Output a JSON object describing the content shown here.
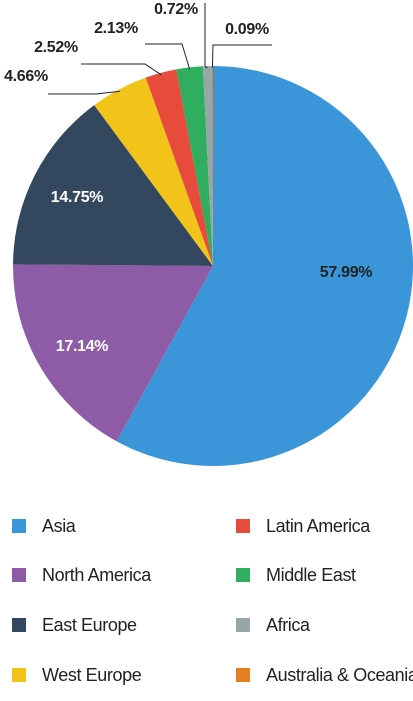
{
  "chart_data": {
    "type": "pie",
    "slices": [
      {
        "name": "Asia",
        "value": 57.99,
        "label": "57.99%",
        "color": "#3a96d8"
      },
      {
        "name": "North America",
        "value": 17.14,
        "label": "17.14%",
        "color": "#8e5ba6"
      },
      {
        "name": "East Europe",
        "value": 14.75,
        "label": "14.75%",
        "color": "#33475f"
      },
      {
        "name": "West Europe",
        "value": 4.66,
        "label": "4.66%",
        "color": "#f2c319"
      },
      {
        "name": "Latin America",
        "value": 2.52,
        "label": "2.52%",
        "color": "#e74b3c"
      },
      {
        "name": "Middle East",
        "value": 2.13,
        "label": "2.13%",
        "color": "#2fae60"
      },
      {
        "name": "Africa",
        "value": 0.72,
        "label": "0.72%",
        "color": "#97a6a6"
      },
      {
        "name": "Australia & Oceania",
        "value": 0.09,
        "label": "0.09%",
        "color": "#e67f22"
      }
    ],
    "legend_position": "bottom"
  }
}
